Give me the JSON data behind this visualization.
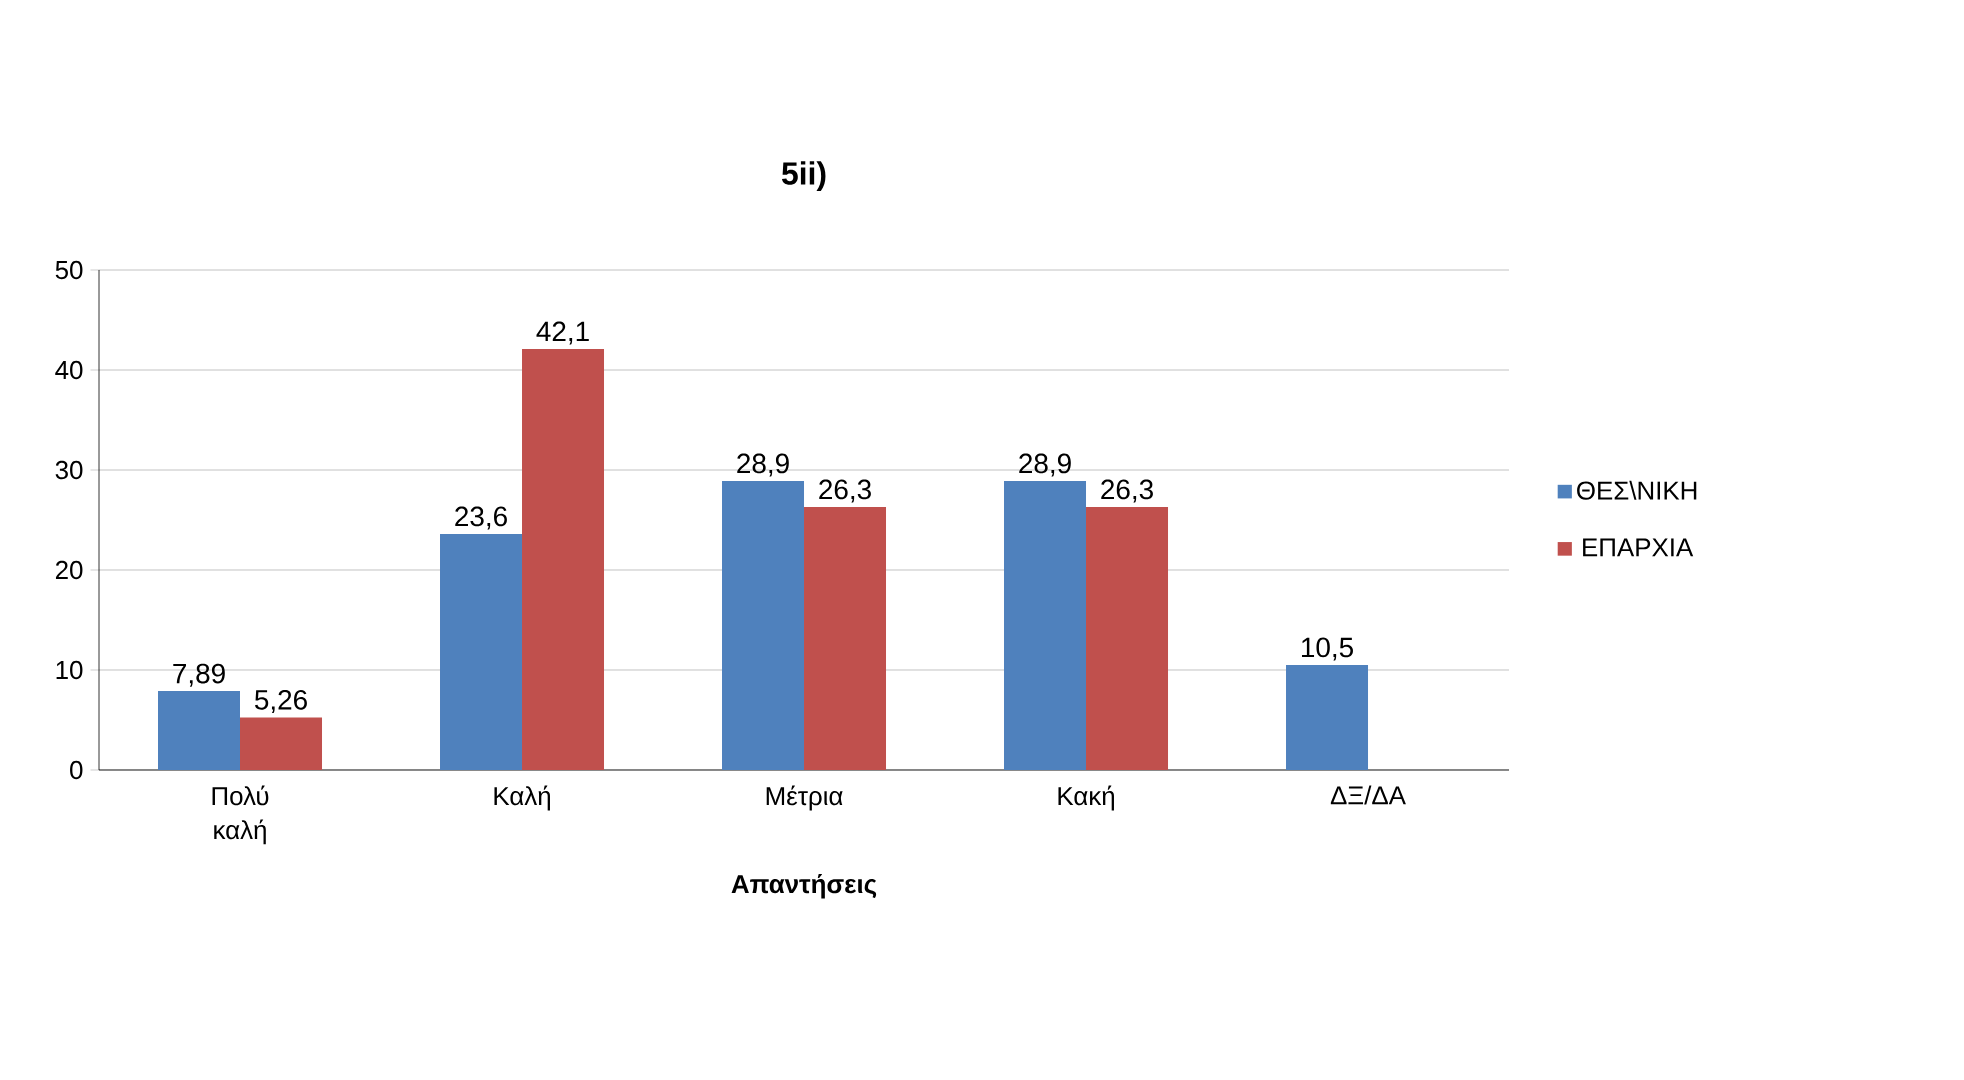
{
  "chart_data": {
    "type": "bar",
    "title": "5ii)",
    "xlabel": "Απαντήσεις",
    "categories": [
      "Πολύ καλή",
      "Καλή",
      "Μέτρια",
      "Κακή",
      "ΔΞ/ΔΑ"
    ],
    "series": [
      {
        "name": "ΘΕΣ\\ΝΙΚΗ",
        "color": "#4f81bd",
        "values": [
          7.89,
          23.6,
          28.9,
          28.9,
          10.5
        ],
        "value_labels": [
          "7,89",
          "23,6",
          "28,9",
          "28,9",
          "10,5"
        ]
      },
      {
        "name": "ΕΠΑΡΧΙΑ",
        "color": "#c0504d",
        "values": [
          5.26,
          42.1,
          26.3,
          26.3,
          null
        ],
        "value_labels": [
          "5,26",
          "42,1",
          "26,3",
          "26,3",
          null
        ]
      }
    ],
    "ylim": [
      0,
      50
    ],
    "yticks": [
      0,
      10,
      20,
      30,
      40,
      50
    ],
    "grid": "y",
    "legend": "right"
  }
}
